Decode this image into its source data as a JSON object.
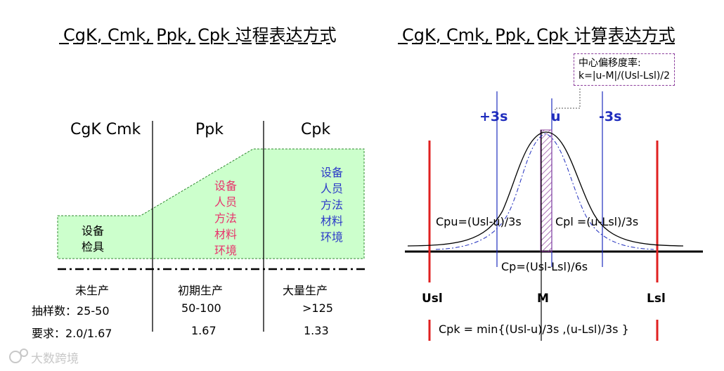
{
  "left": {
    "title": "CgK, Cmk, Ppk, Cpk 过程表达方式",
    "columns": [
      "CgK Cmk",
      "Ppk",
      "Cpk"
    ],
    "factors": {
      "col1": [
        "设备",
        "检具"
      ],
      "col2": [
        "设备",
        "人员",
        "方法",
        "材料",
        "环境"
      ],
      "col3": [
        "设备",
        "人员",
        "方法",
        "材料",
        "环境"
      ]
    },
    "stages": [
      "未生产",
      "初期生产",
      "大量生产"
    ],
    "sample_row": {
      "label": "抽样数：25-50",
      "col2": "50-100",
      "col3": ">125"
    },
    "req_row": {
      "label": "要求：2.0/1.67",
      "col2": "1.67",
      "col3": "1.33"
    },
    "colors": {
      "fill": "#ccffcc",
      "pink": "#e8336b",
      "blue": "#2b39c8"
    }
  },
  "right": {
    "title": "CgK, Cmk, Ppk, Cpk 计算表达方式",
    "note_line1": "中心偏移度率:",
    "note_line2": "k=|u-M|/(Usl-Lsl)/2",
    "plus3s": "+3s",
    "u": "u",
    "minus3s": "-3s",
    "cpu": "Cpu=(Usl-u)/3s",
    "cpl": "Cpl =(u-Lsl)/3s",
    "cp": "Cp=(Usl-Lsl)/6s",
    "usl": "Usl",
    "m": "M",
    "lsl": "Lsl",
    "cpk": "Cpk = min{(Usl-u)/3s ,(u-Lsl)/3s }",
    "colors": {
      "red": "#e02020",
      "blue": "#1f2dbd"
    }
  },
  "watermark": "大数跨境"
}
